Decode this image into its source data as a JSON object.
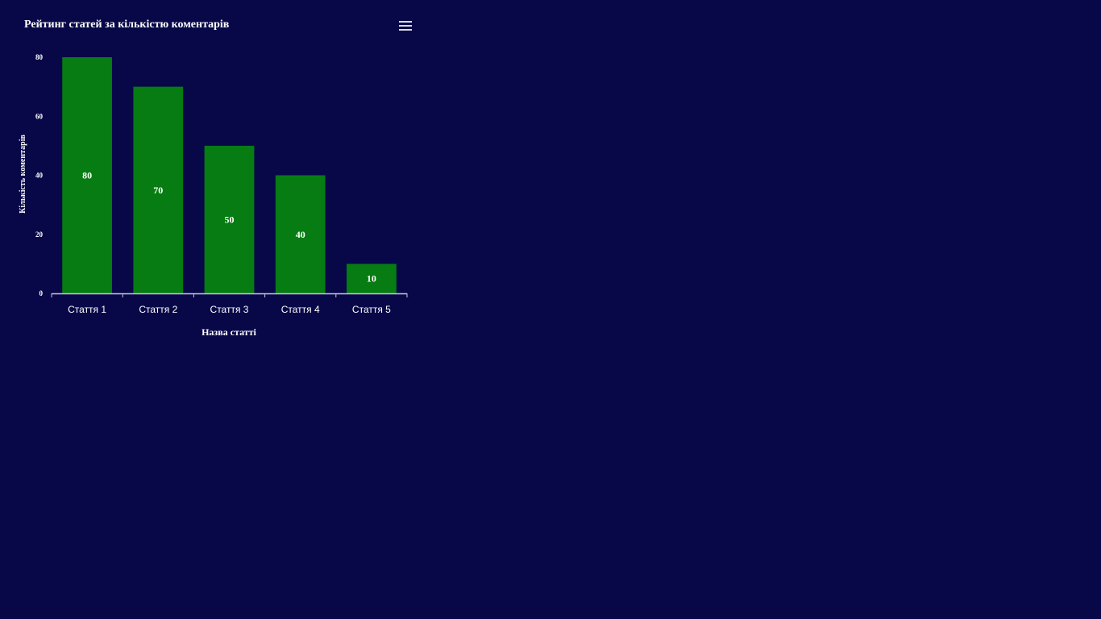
{
  "chart_data": {
    "type": "bar",
    "title": "Рейтинг статей за кількістю коментарів",
    "xlabel": "Назва статті",
    "ylabel": "Кількість коментарів",
    "categories": [
      "Стаття 1",
      "Стаття 2",
      "Стаття 3",
      "Стаття 4",
      "Стаття 5"
    ],
    "values": [
      80,
      70,
      50,
      40,
      10
    ],
    "ylim": [
      0,
      80
    ],
    "yticks": [
      0,
      20,
      40,
      60,
      80
    ],
    "grid": false,
    "legend": "none",
    "bar_color": "#067c12",
    "background_color": "#080849",
    "text_color": "#ffffff"
  },
  "toolbar": {
    "menu_icon": "hamburger-menu-icon"
  }
}
